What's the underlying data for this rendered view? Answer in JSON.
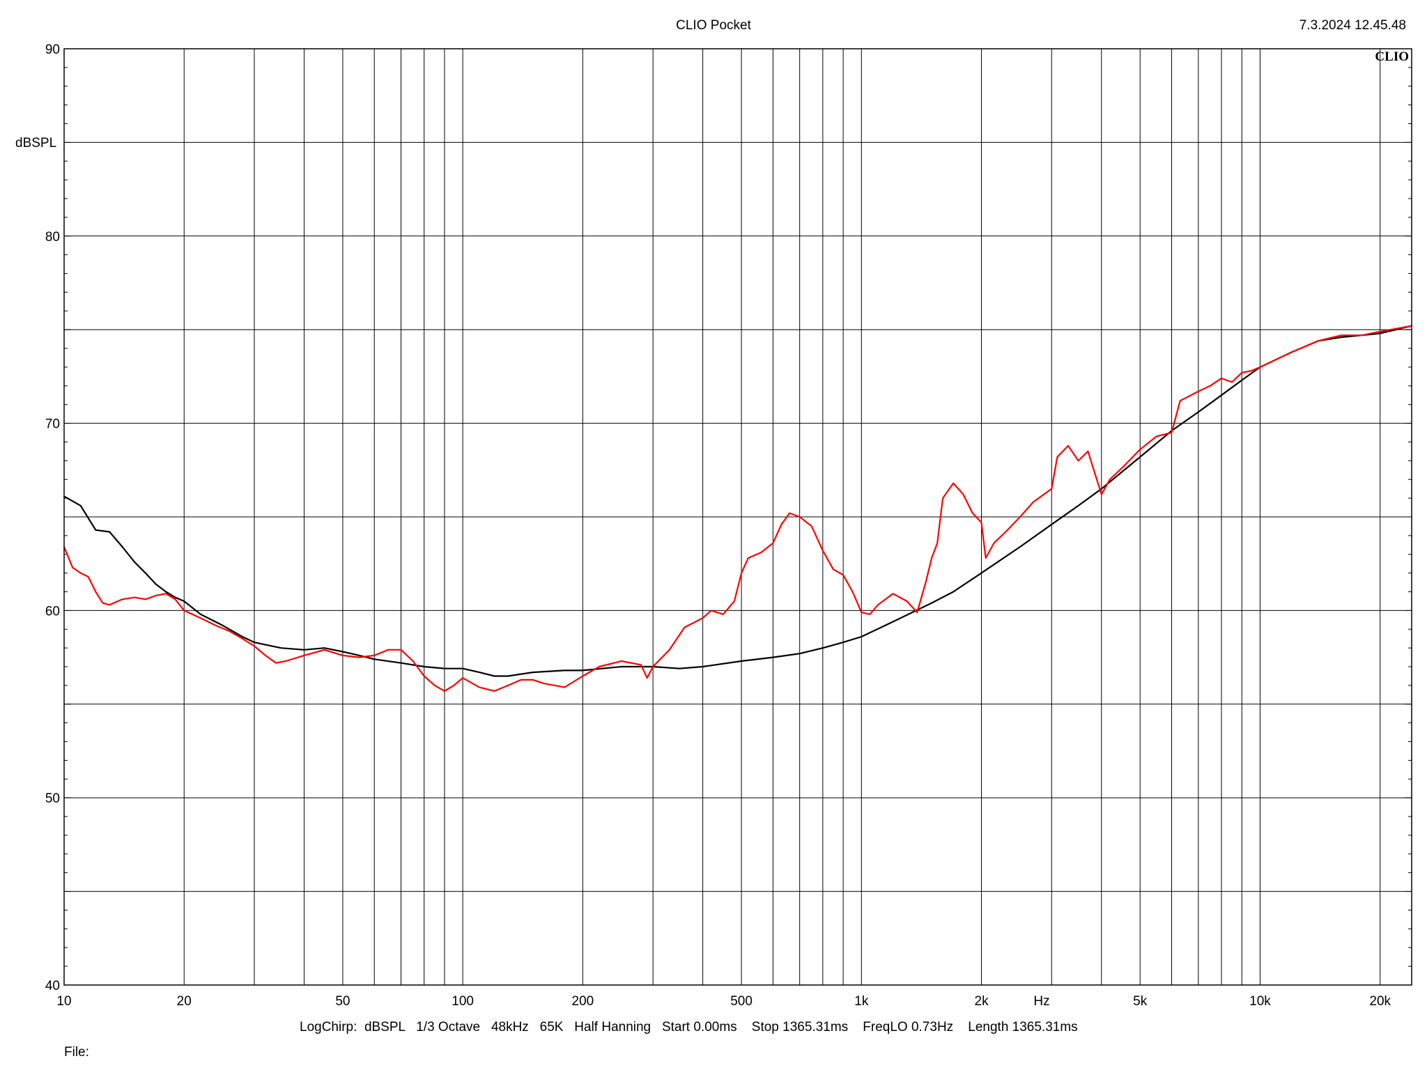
{
  "header": {
    "app_title": "CLIO Pocket",
    "timestamp": "7.3.2024 12.45.48",
    "brand": "CLIO"
  },
  "footer": {
    "params": "LogChirp:  dBSPL   1/3 Octave   48kHz   65K   Half Hanning   Start 0.00ms    Stop 1365.31ms    FreqLO 0.73Hz    Length 1365.31ms",
    "file_label": "File:"
  },
  "colors": {
    "series_black": "#000000",
    "series_red": "#ff0000",
    "grid": "#000000"
  },
  "chart_data": {
    "type": "line",
    "title": "",
    "xlabel": "Hz",
    "ylabel": "dBSPL",
    "xscale": "log",
    "xlim": [
      10,
      24000
    ],
    "ylim": [
      40,
      90
    ],
    "grid": true,
    "x_ticks": [
      {
        "value": 10,
        "label": "10"
      },
      {
        "value": 20,
        "label": "20"
      },
      {
        "value": 50,
        "label": "50"
      },
      {
        "value": 100,
        "label": "100"
      },
      {
        "value": 200,
        "label": "200"
      },
      {
        "value": 500,
        "label": "500"
      },
      {
        "value": 1000,
        "label": "1k"
      },
      {
        "value": 2000,
        "label": "2k"
      },
      {
        "value": 5000,
        "label": "5k"
      },
      {
        "value": 10000,
        "label": "10k"
      },
      {
        "value": 20000,
        "label": "20k"
      }
    ],
    "x_gridlines": [
      10,
      20,
      30,
      40,
      50,
      60,
      70,
      80,
      90,
      100,
      200,
      300,
      400,
      500,
      600,
      700,
      800,
      900,
      1000,
      2000,
      3000,
      4000,
      5000,
      6000,
      7000,
      8000,
      9000,
      10000,
      20000
    ],
    "y_ticks": [
      {
        "value": 40,
        "label": "40"
      },
      {
        "value": 50,
        "label": "50"
      },
      {
        "value": 60,
        "label": "60"
      },
      {
        "value": 70,
        "label": "70"
      },
      {
        "value": 80,
        "label": "80"
      },
      {
        "value": 90,
        "label": "90"
      }
    ],
    "y_gridlines": [
      40,
      45,
      50,
      55,
      60,
      65,
      70,
      75,
      80,
      85,
      90
    ],
    "series": [
      {
        "color": "#000000",
        "points": [
          [
            10,
            66.1
          ],
          [
            11,
            65.6
          ],
          [
            12,
            64.3
          ],
          [
            13,
            64.2
          ],
          [
            14,
            63.4
          ],
          [
            15,
            62.6
          ],
          [
            16,
            62.0
          ],
          [
            17,
            61.4
          ],
          [
            18,
            61.0
          ],
          [
            19,
            60.7
          ],
          [
            20,
            60.5
          ],
          [
            22,
            59.8
          ],
          [
            25,
            59.2
          ],
          [
            28,
            58.6
          ],
          [
            30,
            58.3
          ],
          [
            35,
            58.0
          ],
          [
            40,
            57.9
          ],
          [
            45,
            58.0
          ],
          [
            50,
            57.8
          ],
          [
            55,
            57.6
          ],
          [
            60,
            57.4
          ],
          [
            70,
            57.2
          ],
          [
            80,
            57.0
          ],
          [
            90,
            56.9
          ],
          [
            100,
            56.9
          ],
          [
            110,
            56.7
          ],
          [
            120,
            56.5
          ],
          [
            130,
            56.5
          ],
          [
            150,
            56.7
          ],
          [
            180,
            56.8
          ],
          [
            200,
            56.8
          ],
          [
            250,
            57.0
          ],
          [
            300,
            57.0
          ],
          [
            350,
            56.9
          ],
          [
            400,
            57.0
          ],
          [
            500,
            57.3
          ],
          [
            600,
            57.5
          ],
          [
            700,
            57.7
          ],
          [
            800,
            58.0
          ],
          [
            900,
            58.3
          ],
          [
            1000,
            58.6
          ],
          [
            1200,
            59.4
          ],
          [
            1500,
            60.4
          ],
          [
            1700,
            61.0
          ],
          [
            2000,
            62.0
          ],
          [
            2500,
            63.4
          ],
          [
            3000,
            64.6
          ],
          [
            3500,
            65.6
          ],
          [
            4000,
            66.5
          ],
          [
            5000,
            68.2
          ],
          [
            6000,
            69.6
          ],
          [
            7000,
            70.6
          ],
          [
            8000,
            71.5
          ],
          [
            9000,
            72.3
          ],
          [
            10000,
            73.0
          ],
          [
            12000,
            73.8
          ],
          [
            14000,
            74.4
          ],
          [
            16000,
            74.6
          ],
          [
            18000,
            74.7
          ],
          [
            20000,
            74.8
          ],
          [
            24000,
            75.2
          ]
        ]
      },
      {
        "color": "#ff0000",
        "points": [
          [
            10,
            63.4
          ],
          [
            10.5,
            62.3
          ],
          [
            11,
            62.0
          ],
          [
            11.5,
            61.8
          ],
          [
            12,
            61.0
          ],
          [
            12.5,
            60.4
          ],
          [
            13,
            60.3
          ],
          [
            14,
            60.6
          ],
          [
            15,
            60.7
          ],
          [
            16,
            60.6
          ],
          [
            17,
            60.8
          ],
          [
            18,
            60.9
          ],
          [
            19,
            60.6
          ],
          [
            20,
            60.0
          ],
          [
            22,
            59.6
          ],
          [
            24,
            59.2
          ],
          [
            26,
            58.9
          ],
          [
            28,
            58.5
          ],
          [
            30,
            58.1
          ],
          [
            32,
            57.6
          ],
          [
            34,
            57.2
          ],
          [
            36,
            57.3
          ],
          [
            40,
            57.6
          ],
          [
            45,
            57.9
          ],
          [
            50,
            57.6
          ],
          [
            55,
            57.5
          ],
          [
            60,
            57.6
          ],
          [
            65,
            57.9
          ],
          [
            70,
            57.9
          ],
          [
            75,
            57.3
          ],
          [
            80,
            56.5
          ],
          [
            85,
            56.0
          ],
          [
            90,
            55.7
          ],
          [
            95,
            56.0
          ],
          [
            100,
            56.4
          ],
          [
            110,
            55.9
          ],
          [
            120,
            55.7
          ],
          [
            130,
            56.0
          ],
          [
            140,
            56.3
          ],
          [
            150,
            56.3
          ],
          [
            160,
            56.1
          ],
          [
            180,
            55.9
          ],
          [
            200,
            56.5
          ],
          [
            220,
            57.0
          ],
          [
            250,
            57.3
          ],
          [
            280,
            57.1
          ],
          [
            290,
            56.4
          ],
          [
            300,
            57.0
          ],
          [
            330,
            57.9
          ],
          [
            360,
            59.1
          ],
          [
            400,
            59.6
          ],
          [
            420,
            60.0
          ],
          [
            450,
            59.8
          ],
          [
            480,
            60.5
          ],
          [
            500,
            62.0
          ],
          [
            520,
            62.8
          ],
          [
            560,
            63.1
          ],
          [
            600,
            63.6
          ],
          [
            630,
            64.6
          ],
          [
            660,
            65.2
          ],
          [
            700,
            65.0
          ],
          [
            750,
            64.5
          ],
          [
            800,
            63.2
          ],
          [
            850,
            62.2
          ],
          [
            900,
            61.9
          ],
          [
            950,
            61.0
          ],
          [
            1000,
            59.9
          ],
          [
            1050,
            59.8
          ],
          [
            1100,
            60.3
          ],
          [
            1200,
            60.9
          ],
          [
            1300,
            60.5
          ],
          [
            1380,
            59.9
          ],
          [
            1450,
            61.5
          ],
          [
            1500,
            62.8
          ],
          [
            1550,
            63.6
          ],
          [
            1600,
            66.0
          ],
          [
            1700,
            66.8
          ],
          [
            1800,
            66.2
          ],
          [
            1900,
            65.2
          ],
          [
            2000,
            64.7
          ],
          [
            2050,
            62.8
          ],
          [
            2150,
            63.6
          ],
          [
            2300,
            64.2
          ],
          [
            2500,
            65.0
          ],
          [
            2700,
            65.8
          ],
          [
            3000,
            66.5
          ],
          [
            3100,
            68.2
          ],
          [
            3300,
            68.8
          ],
          [
            3500,
            68.0
          ],
          [
            3700,
            68.5
          ],
          [
            4000,
            66.2
          ],
          [
            4200,
            67.0
          ],
          [
            4500,
            67.6
          ],
          [
            5000,
            68.6
          ],
          [
            5500,
            69.3
          ],
          [
            6000,
            69.5
          ],
          [
            6300,
            71.2
          ],
          [
            7000,
            71.7
          ],
          [
            7500,
            72.0
          ],
          [
            8000,
            72.4
          ],
          [
            8500,
            72.2
          ],
          [
            9000,
            72.7
          ],
          [
            9500,
            72.8
          ],
          [
            10000,
            73.0
          ],
          [
            12000,
            73.8
          ],
          [
            14000,
            74.4
          ],
          [
            16000,
            74.7
          ],
          [
            18000,
            74.7
          ],
          [
            20000,
            74.9
          ],
          [
            24000,
            75.2
          ]
        ]
      }
    ]
  }
}
